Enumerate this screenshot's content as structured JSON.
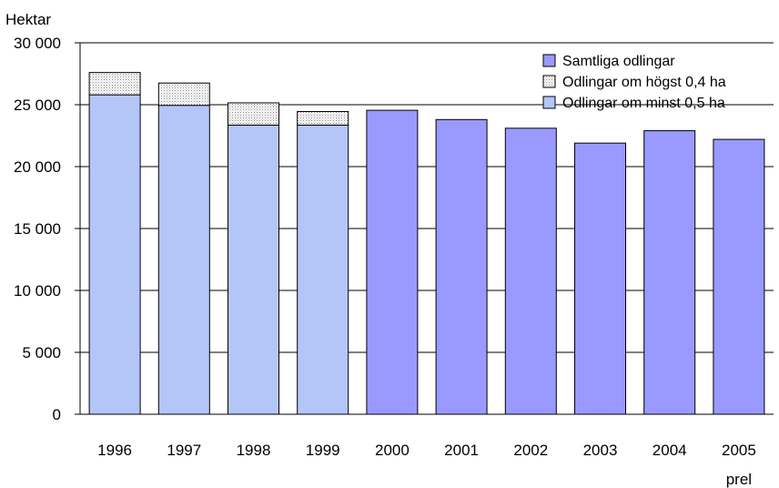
{
  "chart_data": {
    "type": "bar",
    "ylabel": "Hektar",
    "ylim": [
      0,
      30000
    ],
    "yticks": [
      "0",
      "5 000",
      "10 000",
      "15 000",
      "20 000",
      "25 000",
      "30 000"
    ],
    "yticks_values": [
      0,
      5000,
      10000,
      15000,
      20000,
      25000,
      30000
    ],
    "categories": [
      "1996",
      "1997",
      "1998",
      "1999",
      "2000",
      "2001",
      "2002",
      "2003",
      "2004",
      "2005"
    ],
    "category_sublabels": [
      "",
      "",
      "",
      "",
      "",
      "",
      "",
      "",
      "",
      "prel"
    ],
    "series": [
      {
        "name": "Samtliga odlingar",
        "color": "#9999FF",
        "values": [
          null,
          null,
          null,
          null,
          24550,
          23800,
          23100,
          21900,
          22900,
          22200
        ]
      },
      {
        "name": "Odlingar om högst 0,4 ha",
        "color": "#FFFFFF",
        "pattern": "dotted",
        "values": [
          1800,
          1800,
          1800,
          1100,
          null,
          null,
          null,
          null,
          null,
          null
        ]
      },
      {
        "name": "Odlingar om minst 0,5 ha",
        "color": "#B3C6F7",
        "values": [
          25800,
          24950,
          23350,
          23350,
          null,
          null,
          null,
          null,
          null,
          null
        ]
      }
    ],
    "stacked": true,
    "reference_line": {
      "value": 25000
    },
    "legend": {
      "placement": "top-right",
      "order": [
        "Samtliga odlingar",
        "Odlingar om högst 0,4 ha",
        "Odlingar om minst 0,5 ha"
      ]
    },
    "grid": true
  }
}
